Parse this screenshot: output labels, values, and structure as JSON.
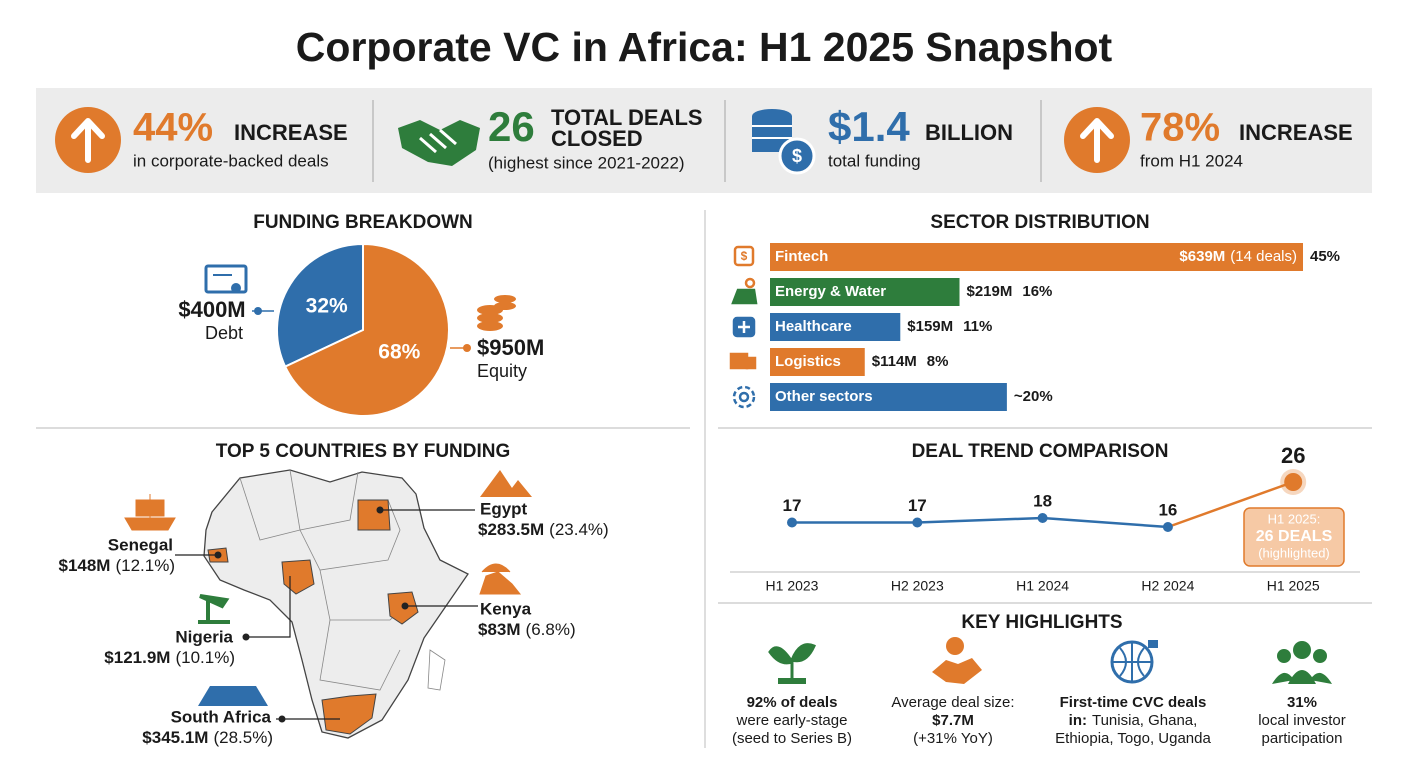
{
  "title": "Corporate VC in Africa: H1 2025 Snapshot",
  "stats": [
    {
      "big": "44%",
      "head": [
        "INCREASE"
      ],
      "sub": "in corporate-backed deals"
    },
    {
      "big": "26",
      "head": [
        "TOTAL DEALS",
        "CLOSED"
      ],
      "sub": "(highest since 2021-2022)"
    },
    {
      "big": "$1.4",
      "head": [
        "BILLION"
      ],
      "sub": "total funding"
    },
    {
      "big": "78%",
      "head": [
        "INCREASE"
      ],
      "sub": "from H1 2024"
    }
  ],
  "chart_data": [
    {
      "type": "pie",
      "title": "FUNDING BREAKDOWN",
      "categories": [
        "Debt",
        "Equity"
      ],
      "values": [
        32,
        68
      ],
      "value_labels": [
        "32%",
        "68%"
      ],
      "amount_labels": [
        "$400M",
        "$950M"
      ],
      "colors": [
        "#2f6eab",
        "#e07a2c"
      ]
    },
    {
      "type": "bar",
      "orientation": "horizontal",
      "title": "SECTOR DISTRIBUTION",
      "categories": [
        "Fintech",
        "Energy & Water",
        "Healthcare",
        "Logistics",
        "Other sectors"
      ],
      "values": [
        45,
        16,
        11,
        8,
        20
      ],
      "value_labels": [
        "45%",
        "16%",
        "11%",
        "8%",
        "~20%"
      ],
      "amount_labels": [
        "$639M",
        "$219M",
        "$159M",
        "$114M",
        null
      ],
      "deal_labels": [
        "(14 deals)",
        null,
        null,
        null,
        null
      ],
      "colors": [
        "#e07a2c",
        "#2e7d3c",
        "#2f6eab",
        "#e07a2c",
        "#2f6eab"
      ]
    },
    {
      "type": "line",
      "title": "DEAL TREND COMPARISON",
      "categories": [
        "H1 2023",
        "H2 2023",
        "H1 2024",
        "H2 2024",
        "H1 2025"
      ],
      "values": [
        17,
        17,
        18,
        16,
        26
      ],
      "color": "#2f6eab",
      "highlight_color": "#e07a2c",
      "callout": [
        "H1 2025:",
        "26 DEALS",
        "(highlighted)"
      ]
    }
  ],
  "map": {
    "title": "TOP 5 COUNTRIES BY FUNDING",
    "countries": [
      {
        "name": "Egypt",
        "amount": "$283.5M",
        "share": "(23.4%)"
      },
      {
        "name": "Senegal",
        "amount": "$148M",
        "share": "(12.1%)"
      },
      {
        "name": "Kenya",
        "amount": "$83M",
        "share": "(6.8%)"
      },
      {
        "name": "Nigeria",
        "amount": "$121.9M",
        "share": "(10.1%)"
      },
      {
        "name": "South Africa",
        "amount": "$345.1M",
        "share": "(28.5%)"
      }
    ]
  },
  "highlights": {
    "title": "KEY HIGHLIGHTS",
    "items": [
      {
        "lines": [
          [
            {
              "text": "92% of deals",
              "bold": true
            }
          ],
          [
            {
              "text": "were early-stage",
              "bold": false
            }
          ],
          [
            {
              "text": "(seed to Series B)",
              "bold": false
            }
          ]
        ]
      },
      {
        "lines": [
          [
            {
              "text": "Average deal size:",
              "bold": false
            }
          ],
          [
            {
              "text": "$7.7M",
              "bold": true
            }
          ],
          [
            {
              "text": "(+31% YoY)",
              "bold": false
            }
          ]
        ]
      },
      {
        "lines": [
          [
            {
              "text": "First-time CVC deals",
              "bold": true
            }
          ],
          [
            {
              "text": "in:",
              "bold": true
            },
            {
              "text": "Tunisia, Ghana,",
              "bold": false
            }
          ],
          [
            {
              "text": "Ethiopia, Togo, Uganda",
              "bold": false
            }
          ]
        ]
      },
      {
        "lines": [
          [
            {
              "text": "31%",
              "bold": true
            }
          ],
          [
            {
              "text": "local investor",
              "bold": false
            }
          ],
          [
            {
              "text": "participation",
              "bold": false
            }
          ]
        ]
      }
    ]
  }
}
